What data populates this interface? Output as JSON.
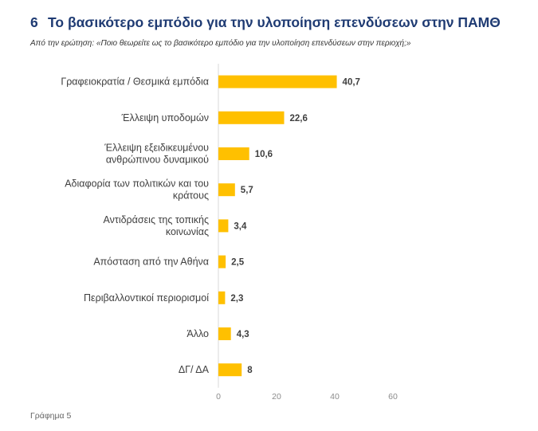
{
  "header": {
    "number": "6",
    "title": "Το βασικότερο εμπόδιο για την υλοποίηση επενδύσεων στην ΠΑΜΘ",
    "subtitle": "Από την ερώτηση: «Ποιο θεωρείτε ως το βασικότερο εμπόδιο για την υλοποίηση επενδύσεων στην περιοχή;»"
  },
  "footer": {
    "caption": "Γράφημα 5"
  },
  "colors": {
    "bar": "#FFC000",
    "title": "#1f3b73",
    "axis": "#d9d9d9"
  },
  "chart_data": {
    "type": "bar",
    "orientation": "horizontal",
    "title": "Το βασικότερο εμπόδιο για την υλοποίηση επενδύσεων στην ΠΑΜΘ",
    "categories": [
      [
        "Γραφειοκρατία / Θεσμικά εμπόδια"
      ],
      [
        "Έλλειψη υποδομών"
      ],
      [
        "Έλλειψη εξειδικευμένου",
        "ανθρώπινου δυναμικού"
      ],
      [
        "Αδιαφορία των πολιτικών και του",
        "κράτους"
      ],
      [
        "Αντιδράσεις της τοπικής",
        "κοινωνίας"
      ],
      [
        "Απόσταση από την Αθήνα"
      ],
      [
        "Περιβαλλοντικοί περιορισμοί"
      ],
      [
        "Άλλο"
      ],
      [
        "ΔΓ/ ΔΑ"
      ]
    ],
    "values": [
      40.7,
      22.6,
      10.6,
      5.7,
      3.4,
      2.5,
      2.3,
      4.3,
      8
    ],
    "value_labels": [
      "40,7",
      "22,6",
      "10,6",
      "5,7",
      "3,4",
      "2,5",
      "2,3",
      "4,3",
      "8"
    ],
    "xlim": [
      0,
      60
    ],
    "xticks": [
      0,
      20,
      40,
      60
    ],
    "xlabel": "",
    "ylabel": "",
    "grid": false
  }
}
